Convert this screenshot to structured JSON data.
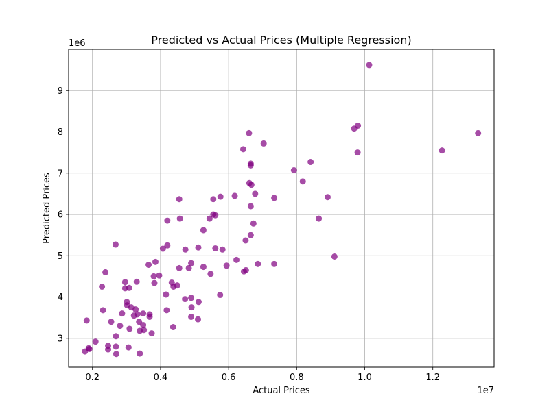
{
  "chart_data": {
    "type": "scatter",
    "title": "Predicted vs Actual Prices (Multiple Regression)",
    "xlabel": "Actual Prices",
    "ylabel": "Predicted Prices",
    "x_offset_label": "1e7",
    "y_offset_label": "1e6",
    "xlim": [
      0.13,
      1.38
    ],
    "ylim": [
      2.3,
      10.0
    ],
    "x_ticks": [
      0.2,
      0.4,
      0.6,
      0.8,
      1.0,
      1.2
    ],
    "x_tick_labels": [
      "0.2",
      "0.4",
      "0.6",
      "0.8",
      "1.0",
      "1.2"
    ],
    "y_ticks": [
      3,
      4,
      5,
      6,
      7,
      8,
      9
    ],
    "y_tick_labels": [
      "3",
      "4",
      "5",
      "6",
      "7",
      "8",
      "9"
    ],
    "grid": true,
    "marker_color": "#800080",
    "marker_alpha": 0.7,
    "points": [
      [
        1.013,
        9.62
      ],
      [
        1.333,
        7.97
      ],
      [
        1.227,
        7.55
      ],
      [
        0.98,
        8.15
      ],
      [
        0.969,
        8.08
      ],
      [
        0.979,
        7.5
      ],
      [
        0.66,
        7.97
      ],
      [
        0.703,
        7.72
      ],
      [
        0.643,
        7.58
      ],
      [
        0.841,
        7.27
      ],
      [
        0.665,
        7.23
      ],
      [
        0.665,
        7.19
      ],
      [
        0.792,
        7.07
      ],
      [
        0.818,
        6.8
      ],
      [
        0.661,
        6.76
      ],
      [
        0.667,
        6.72
      ],
      [
        0.678,
        6.5
      ],
      [
        0.618,
        6.45
      ],
      [
        0.576,
        6.43
      ],
      [
        0.734,
        6.4
      ],
      [
        0.891,
        6.42
      ],
      [
        0.455,
        6.37
      ],
      [
        0.555,
        6.37
      ],
      [
        0.665,
        6.2
      ],
      [
        0.555,
        6.0
      ],
      [
        0.561,
        5.98
      ],
      [
        0.544,
        5.9
      ],
      [
        0.457,
        5.9
      ],
      [
        0.865,
        5.9
      ],
      [
        0.42,
        5.85
      ],
      [
        0.673,
        5.78
      ],
      [
        0.526,
        5.62
      ],
      [
        0.665,
        5.5
      ],
      [
        0.65,
        5.37
      ],
      [
        0.268,
        5.27
      ],
      [
        0.42,
        5.25
      ],
      [
        0.407,
        5.17
      ],
      [
        0.511,
        5.2
      ],
      [
        0.561,
        5.18
      ],
      [
        0.582,
        5.15
      ],
      [
        0.473,
        5.15
      ],
      [
        0.911,
        4.98
      ],
      [
        0.623,
        4.9
      ],
      [
        0.385,
        4.85
      ],
      [
        0.365,
        4.78
      ],
      [
        0.49,
        4.82
      ],
      [
        0.686,
        4.8
      ],
      [
        0.734,
        4.8
      ],
      [
        0.594,
        4.76
      ],
      [
        0.526,
        4.73
      ],
      [
        0.455,
        4.7
      ],
      [
        0.483,
        4.7
      ],
      [
        0.651,
        4.65
      ],
      [
        0.645,
        4.62
      ],
      [
        0.238,
        4.6
      ],
      [
        0.547,
        4.56
      ],
      [
        0.38,
        4.5
      ],
      [
        0.396,
        4.52
      ],
      [
        0.296,
        4.36
      ],
      [
        0.33,
        4.37
      ],
      [
        0.382,
        4.34
      ],
      [
        0.433,
        4.35
      ],
      [
        0.449,
        4.28
      ],
      [
        0.438,
        4.25
      ],
      [
        0.228,
        4.25
      ],
      [
        0.296,
        4.21
      ],
      [
        0.308,
        4.22
      ],
      [
        0.575,
        4.05
      ],
      [
        0.416,
        4.06
      ],
      [
        0.472,
        3.95
      ],
      [
        0.49,
        3.98
      ],
      [
        0.512,
        3.88
      ],
      [
        0.301,
        3.88
      ],
      [
        0.302,
        3.8
      ],
      [
        0.314,
        3.75
      ],
      [
        0.491,
        3.75
      ],
      [
        0.327,
        3.7
      ],
      [
        0.231,
        3.68
      ],
      [
        0.418,
        3.68
      ],
      [
        0.287,
        3.6
      ],
      [
        0.322,
        3.55
      ],
      [
        0.332,
        3.58
      ],
      [
        0.349,
        3.6
      ],
      [
        0.368,
        3.58
      ],
      [
        0.368,
        3.52
      ],
      [
        0.49,
        3.52
      ],
      [
        0.51,
        3.46
      ],
      [
        0.255,
        3.4
      ],
      [
        0.337,
        3.4
      ],
      [
        0.183,
        3.43
      ],
      [
        0.349,
        3.32
      ],
      [
        0.281,
        3.3
      ],
      [
        0.437,
        3.27
      ],
      [
        0.309,
        3.23
      ],
      [
        0.339,
        3.18
      ],
      [
        0.351,
        3.2
      ],
      [
        0.374,
        3.12
      ],
      [
        0.269,
        3.05
      ],
      [
        0.209,
        2.92
      ],
      [
        0.246,
        2.82
      ],
      [
        0.269,
        2.8
      ],
      [
        0.306,
        2.78
      ],
      [
        0.189,
        2.76
      ],
      [
        0.191,
        2.74
      ],
      [
        0.246,
        2.73
      ],
      [
        0.178,
        2.68
      ],
      [
        0.27,
        2.62
      ],
      [
        0.339,
        2.63
      ]
    ]
  }
}
